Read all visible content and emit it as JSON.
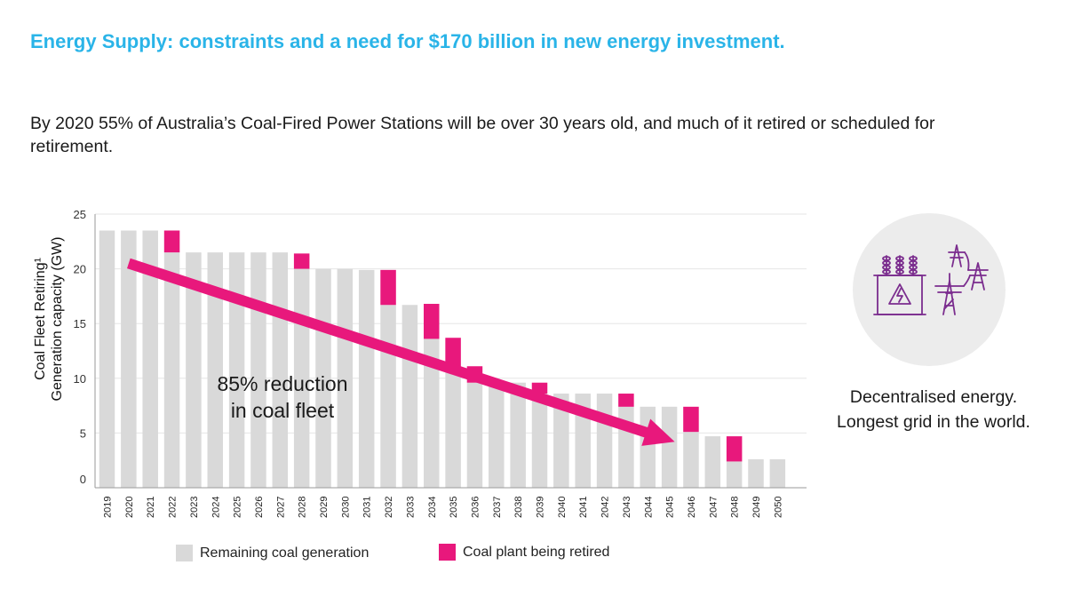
{
  "header": {
    "title": "Energy Supply: constraints and a need for $170 billion in new energy investment.",
    "subtitle": "By 2020 55% of Australia’s Coal-Fired Power Stations will be over 30 years old, and much of it retired or scheduled for retirement."
  },
  "colors": {
    "title": "#2ab4e8",
    "remaining": "#d9d9d9",
    "retired": "#e8187c",
    "icon": "#7b2d8e"
  },
  "chart_data": {
    "type": "bar",
    "stacked": true,
    "categories": [
      "2019",
      "2020",
      "2021",
      "2022",
      "2023",
      "2024",
      "2025",
      "2026",
      "2027",
      "2028",
      "2029",
      "2030",
      "2031",
      "2032",
      "2033",
      "2034",
      "2035",
      "2036",
      "2037",
      "2038",
      "2039",
      "2040",
      "2041",
      "2042",
      "2043",
      "2044",
      "2045",
      "2046",
      "2047",
      "2048",
      "2049",
      "2050"
    ],
    "series": [
      {
        "name": "Remaining coal generation",
        "color": "#d9d9d9",
        "values": [
          23.5,
          23.5,
          23.5,
          21.5,
          21.5,
          21.5,
          21.5,
          21.5,
          21.5,
          20.0,
          20.0,
          20.0,
          19.9,
          16.7,
          16.7,
          13.6,
          10.9,
          9.6,
          9.6,
          9.6,
          8.6,
          8.6,
          8.6,
          8.6,
          7.4,
          7.4,
          7.4,
          5.1,
          4.7,
          2.4,
          2.6,
          2.6
        ]
      },
      {
        "name": "Coal plant being retired",
        "color": "#e8187c",
        "values": [
          0,
          0,
          0,
          2.0,
          0,
          0,
          0,
          0,
          0,
          1.4,
          0,
          0,
          0,
          3.2,
          0,
          3.2,
          2.8,
          1.5,
          0,
          0,
          1.0,
          0,
          0,
          0,
          1.2,
          0,
          0,
          2.3,
          0,
          2.3,
          0,
          0
        ]
      }
    ],
    "ylabel_lines": [
      "Coal Fleet Retiring¹",
      "Generation capacity (GW)"
    ],
    "ylim": [
      0,
      25
    ],
    "yticks": [
      0,
      5,
      10,
      15,
      20,
      25
    ],
    "grid": true,
    "legend": "bottom",
    "annotation": {
      "lines": [
        "85% reduction",
        "in coal fleet"
      ],
      "arrow_from": {
        "category": "2020",
        "value": 20.5
      },
      "arrow_to": {
        "category": "2045",
        "value": 4.2
      }
    }
  },
  "side_panel": {
    "icon_name": "transformer-and-power-pylons-icon",
    "caption_lines": [
      "Decentralised energy.",
      "Longest grid in the world."
    ]
  }
}
